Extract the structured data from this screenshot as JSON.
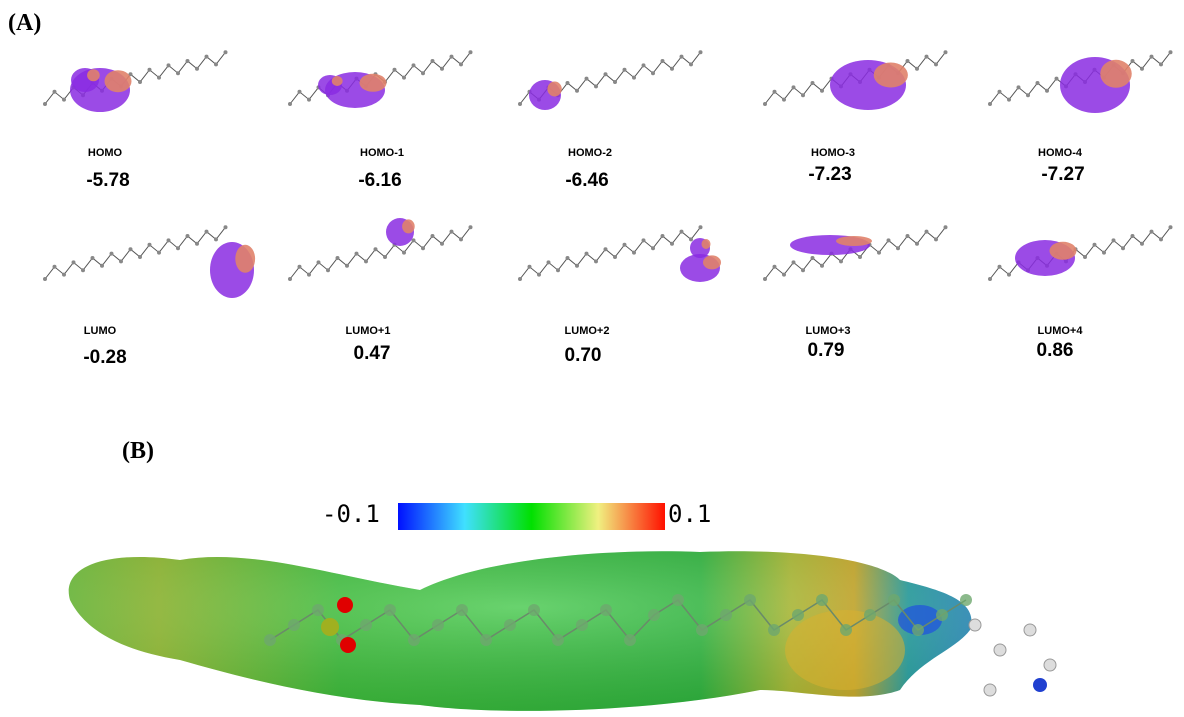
{
  "panel_a": {
    "label": "(A)",
    "orbitals": [
      {
        "name": "HOMO",
        "energy": "-5.78"
      },
      {
        "name": "HOMO-1",
        "energy": "-6.16"
      },
      {
        "name": "HOMO-2",
        "energy": "-6.46"
      },
      {
        "name": "HOMO-3",
        "energy": "-7.23"
      },
      {
        "name": "HOMO-4",
        "energy": "-7.27"
      },
      {
        "name": "LUMO",
        "energy": "-0.28"
      },
      {
        "name": "LUMO+1",
        "energy": "0.47"
      },
      {
        "name": "LUMO+2",
        "energy": "0.70"
      },
      {
        "name": "LUMO+3",
        "energy": "0.79"
      },
      {
        "name": "LUMO+4",
        "energy": "0.86"
      }
    ]
  },
  "panel_b": {
    "label": "(B)",
    "colorbar": {
      "min_label": "-0.1",
      "max_label": "0.1"
    }
  }
}
